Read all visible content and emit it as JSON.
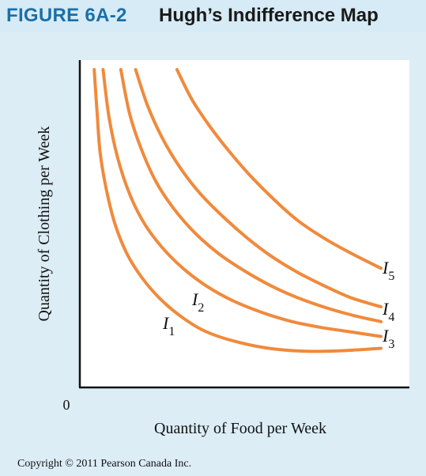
{
  "figure": {
    "number": "FIGURE 6A-2",
    "title": "Hugh’s Indifference Map"
  },
  "copyright": "Copyright © 2011 Pearson Canada Inc.",
  "colors": {
    "background": "#dcedf6",
    "plot_background": "#ffffff",
    "curve": "#f08a3c",
    "axis": "#111111",
    "header_accent": "#1b6fa8"
  },
  "chart_data": {
    "type": "line",
    "title": "Hugh’s Indifference Map",
    "xlabel": "Quantity of Food per Week",
    "ylabel": "Quantity of Clothing per Week",
    "origin_label": "0",
    "xlim": [
      0,
      100
    ],
    "ylim": [
      0,
      100
    ],
    "grid": false,
    "legend": "none",
    "series": [
      {
        "label_letter": "I",
        "label_sub": "1",
        "points": [
          [
            3,
            100
          ],
          [
            4,
            85
          ],
          [
            5,
            72
          ],
          [
            7,
            60
          ],
          [
            10,
            48
          ],
          [
            14,
            38
          ],
          [
            19,
            30
          ],
          [
            25,
            23
          ],
          [
            32,
            17
          ],
          [
            40,
            12
          ],
          [
            50,
            8.5
          ],
          [
            62,
            6
          ],
          [
            75,
            5
          ],
          [
            87,
            5.2
          ],
          [
            100,
            6
          ]
        ]
      },
      {
        "label_letter": "I",
        "label_sub": "2",
        "points": [
          [
            6,
            100
          ],
          [
            8,
            84
          ],
          [
            11,
            70
          ],
          [
            15,
            58
          ],
          [
            20,
            48
          ],
          [
            26,
            40
          ],
          [
            33,
            33
          ],
          [
            41,
            27
          ],
          [
            50,
            22
          ],
          [
            60,
            18
          ],
          [
            70,
            15
          ],
          [
            80,
            13
          ],
          [
            90,
            11.5
          ],
          [
            100,
            10
          ]
        ]
      },
      {
        "label_letter": "I",
        "label_sub": "3",
        "points": [
          [
            12,
            100
          ],
          [
            15,
            85
          ],
          [
            19,
            73
          ],
          [
            24,
            62
          ],
          [
            30,
            53
          ],
          [
            37,
            45
          ],
          [
            45,
            38
          ],
          [
            54,
            32
          ],
          [
            63,
            27
          ],
          [
            72,
            23
          ],
          [
            82,
            19.5
          ],
          [
            91,
            17
          ],
          [
            100,
            15
          ]
        ]
      },
      {
        "label_letter": "I",
        "label_sub": "4",
        "points": [
          [
            17,
            100
          ],
          [
            21,
            88
          ],
          [
            26,
            77
          ],
          [
            32,
            67
          ],
          [
            39,
            58
          ],
          [
            47,
            50
          ],
          [
            55,
            43
          ],
          [
            63,
            37
          ],
          [
            72,
            31.5
          ],
          [
            81,
            27
          ],
          [
            90,
            23
          ],
          [
            100,
            20
          ]
        ]
      },
      {
        "label_letter": "I",
        "label_sub": "5",
        "points": [
          [
            31,
            100
          ],
          [
            36,
            90
          ],
          [
            42,
            81
          ],
          [
            49,
            72
          ],
          [
            56,
            64
          ],
          [
            64,
            56
          ],
          [
            72,
            49
          ],
          [
            81,
            43
          ],
          [
            90,
            38
          ],
          [
            100,
            33
          ]
        ]
      }
    ]
  }
}
